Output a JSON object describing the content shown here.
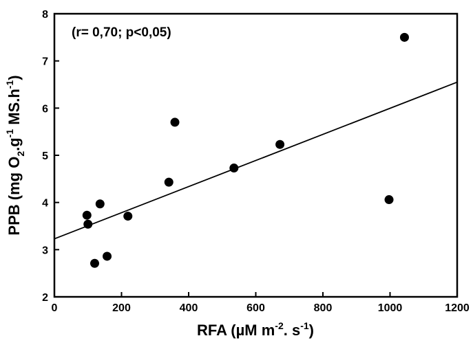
{
  "chart_data": {
    "type": "scatter",
    "annotation": "(r= 0,70; p<0,05)",
    "xlabel": {
      "main": "RFA (µM m",
      "sup1": "-2",
      "mid": ". s",
      "sup2": "-1",
      "end": ")"
    },
    "ylabel": {
      "main": "PPB (mg O",
      "sub": "2",
      "mid1": ".g",
      "sup1": "-1",
      "mid2": " MS.h",
      "sup2": "-1",
      "end": ")"
    },
    "xlim": [
      0,
      1200
    ],
    "ylim": [
      2,
      8
    ],
    "xticks": [
      0,
      200,
      400,
      600,
      800,
      1000,
      1200
    ],
    "yticks": [
      2,
      3,
      4,
      5,
      6,
      7,
      8
    ],
    "grid": false,
    "points": [
      {
        "x": 97,
        "y": 3.73
      },
      {
        "x": 100,
        "y": 3.54
      },
      {
        "x": 120,
        "y": 2.71
      },
      {
        "x": 136,
        "y": 3.97
      },
      {
        "x": 157,
        "y": 2.86
      },
      {
        "x": 219,
        "y": 3.71
      },
      {
        "x": 341,
        "y": 4.43
      },
      {
        "x": 359,
        "y": 5.7
      },
      {
        "x": 535,
        "y": 4.73
      },
      {
        "x": 672,
        "y": 5.23
      },
      {
        "x": 997,
        "y": 4.06
      },
      {
        "x": 1043,
        "y": 7.5
      }
    ],
    "regression_line": {
      "x": [
        0,
        1200
      ],
      "y": [
        3.23,
        6.55
      ]
    }
  }
}
